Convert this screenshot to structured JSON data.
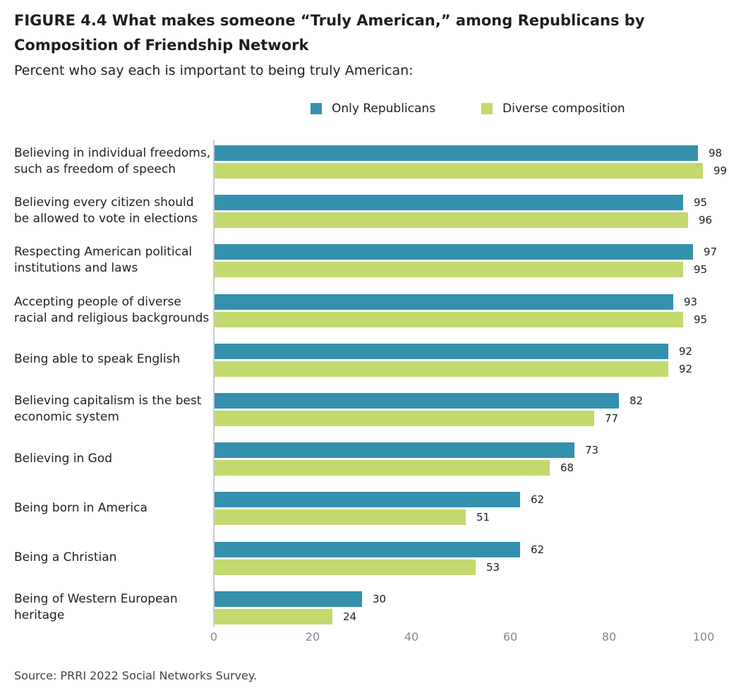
{
  "title": "FIGURE 4.4  What makes someone “Truly American,” among Republicans by Composition of Friendship Network",
  "subtitle": "Percent who say each is important to being truly American:",
  "source": "Source: PRRI 2022 Social Networks Survey.",
  "legend": [
    {
      "name": "Only Republicans",
      "color": "#3491ad"
    },
    {
      "name": "Diverse composition",
      "color": "#c2d96d"
    }
  ],
  "chart_data": {
    "type": "bar",
    "orientation": "horizontal",
    "title": "FIGURE 4.4  What makes someone “Truly American,” among Republicans by Composition of Friendship Network",
    "subtitle": "Percent who say each is important to being truly American:",
    "categories": [
      "Believing in individual freedoms, such as freedom of speech",
      "Believing every citizen should be allowed to vote in elections",
      "Respecting American political institutions and laws",
      "Accepting people of diverse racial and religious backgrounds",
      "Being able to speak English",
      "Believing capitalism is the best economic system",
      "Believing in God",
      "Being born in America",
      "Being a Christian",
      "Being of Western European heritage"
    ],
    "series": [
      {
        "name": "Only Republicans",
        "color": "#3491ad",
        "values": [
          98,
          95,
          97,
          93,
          92,
          82,
          73,
          62,
          62,
          30
        ]
      },
      {
        "name": "Diverse composition",
        "color": "#c2d96d",
        "values": [
          99,
          96,
          95,
          95,
          92,
          77,
          68,
          51,
          53,
          24
        ]
      }
    ],
    "xlim": [
      0,
      100
    ],
    "xticks": [
      "0",
      "20",
      "40",
      "60",
      "80",
      "100"
    ],
    "legend_position": "top",
    "grid": false
  }
}
